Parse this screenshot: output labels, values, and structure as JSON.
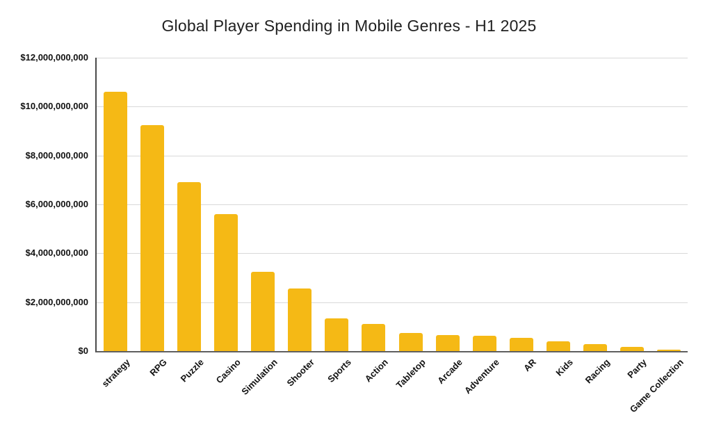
{
  "title": "Global Player Spending in Mobile Genres - H1 2025",
  "chart_data": {
    "type": "bar",
    "title": "Global Player Spending in Mobile Genres - H1 2025",
    "xlabel": "",
    "ylabel": "",
    "legend": "none",
    "grid": "horizontal",
    "bar_color": "#F5B915",
    "gridline_color": "#d9d9d9",
    "axis_color": "#4a4a4a",
    "ylim": [
      0,
      12000000000
    ],
    "ytick_values": [
      0,
      2000000000,
      4000000000,
      6000000000,
      8000000000,
      10000000000,
      12000000000
    ],
    "ytick_labels": [
      "$0",
      "$2,000,000,000",
      "$4,000,000,000",
      "$6,000,000,000",
      "$8,000,000,000",
      "$10,000,000,000",
      "$12,000,000,000"
    ],
    "categories": [
      "strategy",
      "RPG",
      "Puzzle",
      "Casino",
      "Simulation",
      "Shooter",
      "Sports",
      "Action",
      "Tabletop",
      "Arcade",
      "Adventure",
      "AR",
      "Kids",
      "Racing",
      "Party",
      "Game Collection"
    ],
    "values": [
      10600000000,
      9250000000,
      6900000000,
      5600000000,
      3250000000,
      2550000000,
      1350000000,
      1100000000,
      750000000,
      650000000,
      630000000,
      550000000,
      400000000,
      280000000,
      180000000,
      50000000
    ]
  }
}
